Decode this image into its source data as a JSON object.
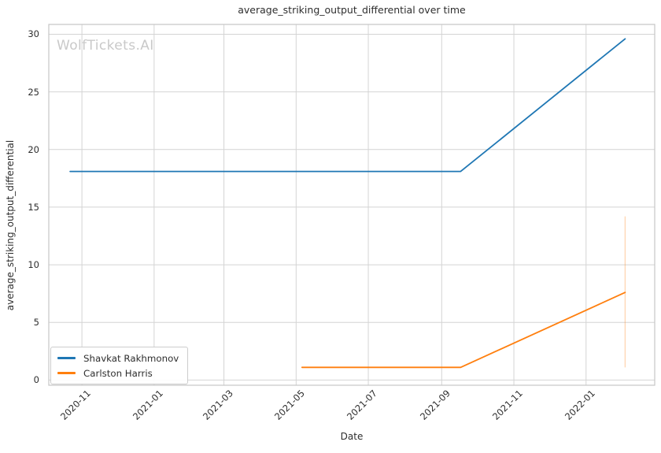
{
  "watermark": "WolfTickets.AI",
  "colors": {
    "grid": "#d4d4d4",
    "frame": "#c6c6c6",
    "text": "#2e2e2e",
    "watermark": "#c9c9c9",
    "series_blue": "#1f77b4",
    "series_orange": "#ff7f0e"
  },
  "chart_data": {
    "type": "line",
    "title": "average_striking_output_differential over time",
    "xlabel": "Date",
    "ylabel": "average_striking_output_differential",
    "grid": true,
    "legend_position": "lower left",
    "x_domain": [
      "2020-10-04",
      "2022-02-28"
    ],
    "ylim": [
      -0.45,
      30.85
    ],
    "yticks": [
      0,
      5,
      10,
      15,
      20,
      25,
      30
    ],
    "xticks": [
      {
        "date": "2020-11-01",
        "label": "2020-11"
      },
      {
        "date": "2021-01-01",
        "label": "2021-01"
      },
      {
        "date": "2021-03-01",
        "label": "2021-03"
      },
      {
        "date": "2021-05-01",
        "label": "2021-05"
      },
      {
        "date": "2021-07-01",
        "label": "2021-07"
      },
      {
        "date": "2021-09-01",
        "label": "2021-09"
      },
      {
        "date": "2021-11-01",
        "label": "2021-11"
      },
      {
        "date": "2022-01-01",
        "label": "2022-01"
      }
    ],
    "series": [
      {
        "name": "Shavkat Rakhmonov",
        "color": "#1f77b4",
        "points": [
          [
            "2020-10-22",
            18.1
          ],
          [
            "2021-09-17",
            18.1
          ],
          [
            "2022-02-03",
            29.6
          ]
        ]
      },
      {
        "name": "Carlston Harris",
        "color": "#ff7f0e",
        "points": [
          [
            "2021-05-06",
            1.1
          ],
          [
            "2021-09-17",
            1.1
          ],
          [
            "2022-02-03",
            7.6
          ]
        ],
        "error_bar": {
          "date": "2022-02-03",
          "low": 1.1,
          "high": 14.2
        }
      }
    ]
  }
}
